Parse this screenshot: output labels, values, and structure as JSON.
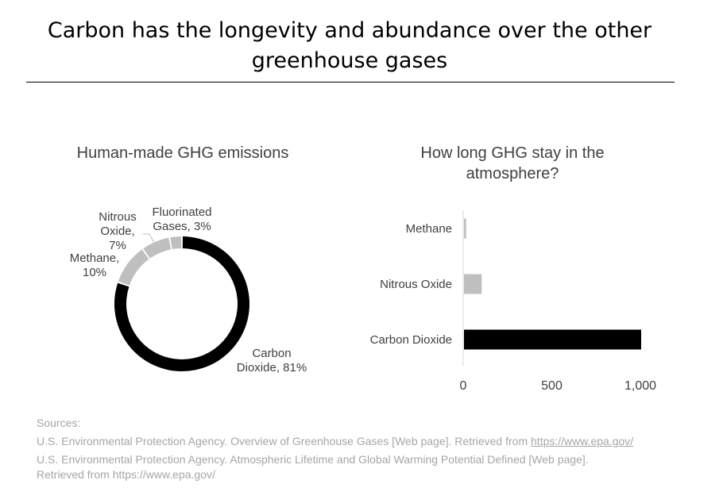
{
  "title": {
    "line1": "Carbon has the longevity and abundance over the other",
    "line2": "greenhouse gases"
  },
  "colors": {
    "carbon": "#000000",
    "other_gases": "#bfbfbf",
    "text": "#404040",
    "sources": "#a6a6a6"
  },
  "chart_data": [
    {
      "type": "pie",
      "subtype": "donut",
      "title": "Human-made GHG emissions",
      "categories": [
        "Carbon Dioxide",
        "Methane",
        "Nitrous Oxide",
        "Fluorinated Gases"
      ],
      "values": [
        81,
        10,
        7,
        3
      ],
      "unit": "%",
      "data_labels": [
        [
          "Carbon",
          "Dioxide, 81%"
        ],
        [
          "Methane,",
          "10%"
        ],
        [
          "Nitrous",
          "Oxide,",
          "7%"
        ],
        [
          "Fluorinated",
          "Gases, 3%"
        ]
      ],
      "colors": [
        "#000000",
        "#bfbfbf",
        "#bfbfbf",
        "#bfbfbf"
      ],
      "legend": "none"
    },
    {
      "type": "bar",
      "orientation": "horizontal",
      "title": "How long GHG stay in the atmosphere?",
      "categories": [
        "Methane",
        "Nitrous Oxide",
        "Carbon Dioxide"
      ],
      "values": [
        12,
        100,
        1000
      ],
      "colors": [
        "#bfbfbf",
        "#bfbfbf",
        "#000000"
      ],
      "xlim": [
        0,
        1000
      ],
      "xticks": [
        0,
        500,
        1000
      ],
      "xtick_labels": [
        "0",
        "500",
        "1,000"
      ],
      "xlabel": "",
      "ylabel": "",
      "grid": false,
      "legend": "none"
    }
  ],
  "sources": {
    "heading": "Sources:",
    "source1_text": "U.S. Environmental Protection Agency. Overview of Greenhouse Gases [Web page]. Retrieved from ",
    "source1_link": "https://www.epa.gov/",
    "source2_line1": "U.S. Environmental Protection Agency. Atmospheric Lifetime and Global Warming Potential Defined [Web page].",
    "source2_line2": "Retrieved from https://www.epa.gov/"
  }
}
